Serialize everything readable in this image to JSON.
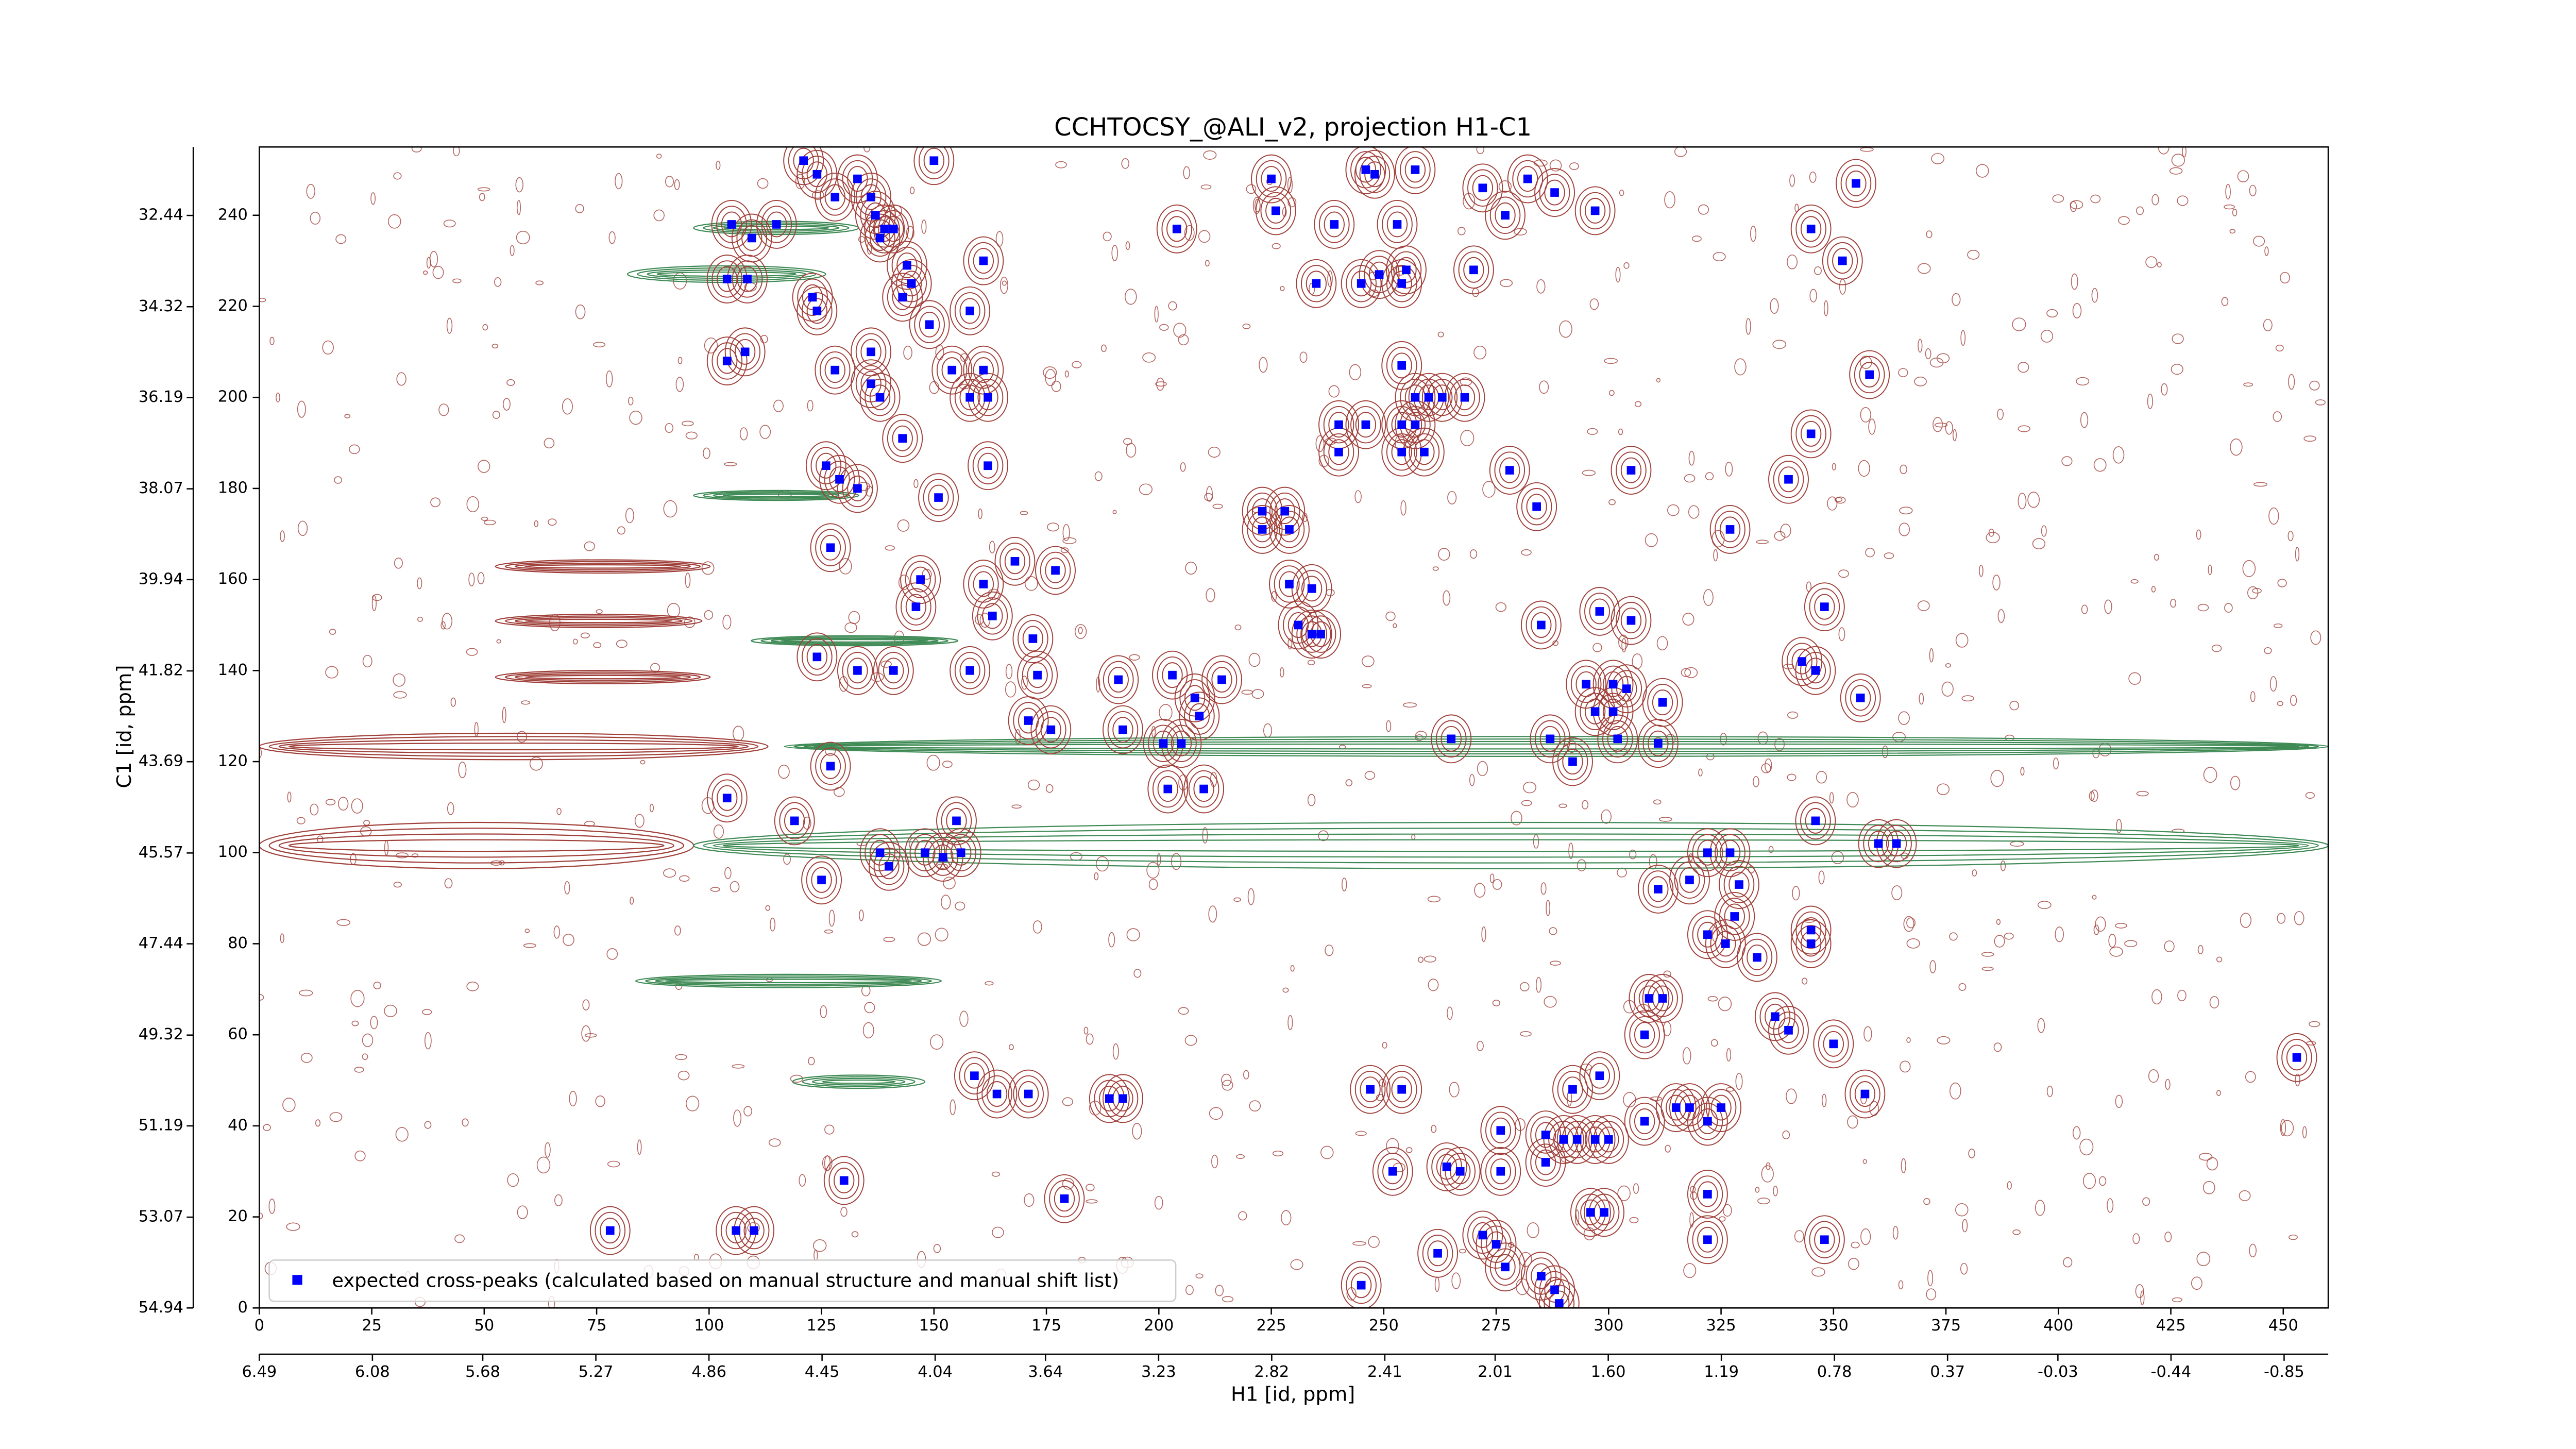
{
  "chart_data": {
    "type": "scatter",
    "title": "CCHTOCSY_@ALI_v2, projection H1-C1",
    "xlabel": "H1 [id, ppm]",
    "ylabel": "C1 [id, ppm]",
    "xlim": [
      0,
      460
    ],
    "ylim": [
      0,
      255
    ],
    "xticks": [
      0,
      25,
      50,
      75,
      100,
      125,
      150,
      175,
      200,
      225,
      250,
      275,
      300,
      325,
      350,
      375,
      400,
      425,
      450
    ],
    "yticks": [
      0,
      20,
      40,
      60,
      80,
      100,
      120,
      140,
      160,
      180,
      200,
      220,
      240
    ],
    "x2lim": [
      6.49,
      -1.01
    ],
    "x2ticks": [
      6.49,
      6.08,
      5.68,
      5.27,
      4.86,
      4.45,
      4.04,
      3.64,
      3.23,
      2.82,
      2.41,
      2.01,
      {
        "value": 1.6,
        "label": "1.60"
      },
      1.19,
      0.78,
      0.37,
      -0.03,
      -0.44,
      -0.85
    ],
    "y2lim": [
      54.94,
      31.03
    ],
    "y2ticks": [
      54.94,
      53.07,
      51.19,
      49.32,
      47.44,
      45.57,
      43.69,
      41.82,
      39.94,
      38.07,
      36.19,
      34.32,
      32.44
    ],
    "legend": "lower left",
    "series": [
      {
        "name": "expected cross-peaks (calculated based on manual structure and manual shift list)",
        "color": "#0000ff",
        "x": [
          104,
          108.5,
          105,
          109.5,
          115,
          104,
          108,
          104,
          106,
          110,
          78,
          121,
          124,
          128,
          133,
          136,
          137,
          139,
          141,
          138,
          144,
          145,
          143,
          123,
          124,
          128,
          136,
          136,
          138,
          150,
          161,
          158,
          149,
          154,
          158,
          162,
          161,
          143,
          126,
          129,
          133,
          127,
          151,
          162,
          147,
          146,
          161,
          163,
          168,
          177,
          124,
          133,
          141,
          158,
          172,
          173,
          171,
          176,
          191,
          192,
          203,
          208,
          209,
          214,
          201,
          205,
          202,
          210,
          127,
          119,
          138,
          140,
          148,
          152,
          156,
          125,
          155,
          159,
          164,
          171,
          179,
          189,
          192,
          130,
          204,
          225,
          226,
          235,
          239,
          246,
          253,
          248,
          257,
          245,
          249,
          254,
          255,
          272,
          277,
          282,
          288,
          297,
          270,
          352,
          355,
          345,
          254,
          257,
          260,
          263,
          268,
          240,
          246,
          254,
          257,
          259,
          254,
          240,
          278,
          305,
          284,
          223,
          228,
          223,
          229,
          229,
          234,
          231,
          234,
          236,
          345,
          358,
          340,
          327,
          348,
          343,
          346,
          356,
          285,
          298,
          305,
          295,
          301,
          304,
          297,
          301,
          312,
          287,
          292,
          302,
          311,
          265,
          322,
          327,
          346,
          360,
          364,
          311,
          318,
          329,
          328,
          322,
          345,
          345,
          326,
          333,
          309,
          312,
          337,
          340,
          350,
          308,
          357,
          453,
          247,
          254,
          276,
          286,
          290,
          293,
          297,
          300,
          308,
          315,
          318,
          322,
          325,
          292,
          298,
          264,
          267,
          276,
          286,
          252,
          296,
          299,
          262,
          272,
          275,
          277,
          285,
          288,
          289,
          245,
          322,
          348,
          322
        ],
        "values": [
          226,
          226,
          238,
          235,
          238,
          208,
          210,
          112,
          17,
          17,
          17,
          252,
          249,
          244,
          248,
          244,
          240,
          237,
          237,
          235,
          229,
          225,
          222,
          222,
          219,
          206,
          210,
          203,
          200,
          252,
          230,
          219,
          216,
          206,
          200,
          200,
          206,
          191,
          185,
          182,
          180,
          167,
          178,
          185,
          160,
          154,
          159,
          152,
          164,
          162,
          143,
          140,
          140,
          140,
          147,
          139,
          129,
          127,
          138,
          127,
          139,
          134,
          130,
          138,
          124,
          124,
          114,
          114,
          119,
          107,
          100,
          97,
          100,
          99,
          100,
          94,
          107,
          51,
          47,
          47,
          24,
          46,
          46,
          28,
          237,
          248,
          241,
          225,
          238,
          250,
          238,
          249,
          250,
          225,
          227,
          225,
          228,
          246,
          240,
          248,
          245,
          241,
          228,
          230,
          247,
          237,
          207,
          200,
          200,
          200,
          200,
          194,
          194,
          194,
          194,
          188,
          188,
          188,
          184,
          184,
          176,
          175,
          175,
          171,
          171,
          159,
          158,
          150,
          148,
          148,
          192,
          205,
          182,
          171,
          154,
          142,
          140,
          134,
          150,
          153,
          151,
          137,
          137,
          136,
          131,
          131,
          133,
          125,
          120,
          125,
          124,
          125,
          100,
          100,
          107,
          102,
          102,
          92,
          94,
          93,
          86,
          82,
          83,
          80,
          80,
          77,
          68,
          68,
          64,
          61,
          58,
          60,
          47,
          55,
          48,
          48,
          39,
          38,
          37,
          37,
          37,
          37,
          41,
          44,
          44,
          41,
          44,
          48,
          51,
          31,
          30,
          30,
          32,
          30,
          21,
          21,
          12,
          16,
          14,
          9,
          7,
          4,
          1,
          5,
          15,
          15,
          25
        ]
      }
    ]
  }
}
